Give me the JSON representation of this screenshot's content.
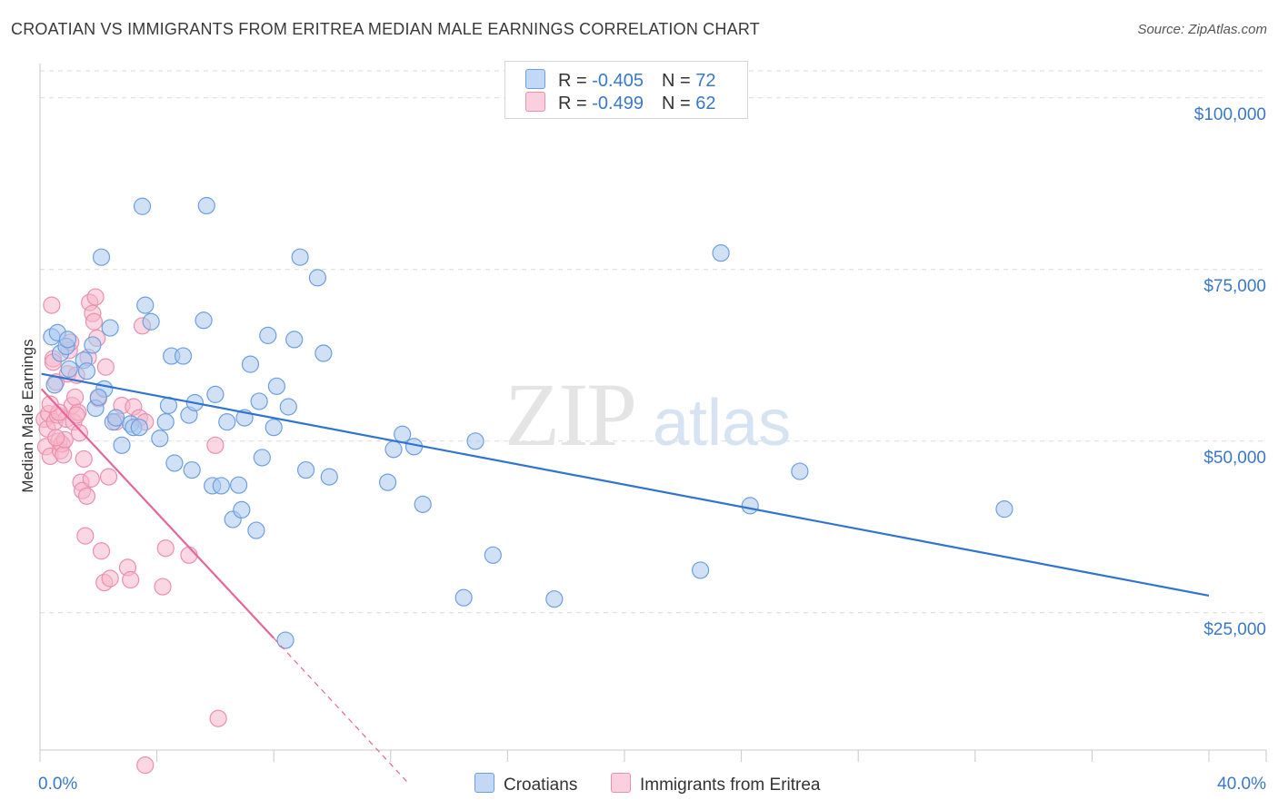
{
  "title": "CROATIAN VS IMMIGRANTS FROM ERITREA MEDIAN MALE EARNINGS CORRELATION CHART",
  "source": "Source: ZipAtlas.com",
  "watermark": {
    "zip": "ZIP",
    "atlas": "atlas"
  },
  "legend": {
    "rows": [
      {
        "r_label": "R = ",
        "r_value": "-0.405",
        "n_label": "N = ",
        "n_value": "72"
      },
      {
        "r_label": "R = ",
        "r_value": "-0.499",
        "n_label": "N = ",
        "n_value": "62"
      }
    ]
  },
  "colors": {
    "blue_fill": "#a9c8ef",
    "blue_stroke": "#6d9fe0",
    "blue_line": "#2f74d0",
    "pink_fill": "#f6b6cb",
    "pink_stroke": "#ec8fae",
    "pink_line": "#e4669a",
    "tick_text": "#3a78c9",
    "grid": "#d9d9d9"
  },
  "chart_data": {
    "type": "scatter",
    "title": "CROATIAN VS IMMIGRANTS FROM ERITREA MEDIAN MALE EARNINGS CORRELATION CHART",
    "xlabel": "",
    "ylabel": "Median Male Earnings",
    "xlim": [
      0,
      40
    ],
    "ylim": [
      5000,
      105000
    ],
    "x_tick_labels": [
      "0.0%",
      "40.0%"
    ],
    "y_ticks": [
      25000,
      50000,
      75000,
      100000
    ],
    "y_tick_labels": [
      "$25,000",
      "$50,000",
      "$75,000",
      "$100,000"
    ],
    "grid": true,
    "legend_position": "top-center",
    "series": [
      {
        "name": "Croatians",
        "r": -0.405,
        "n": 72,
        "trend": {
          "x": [
            0.05,
            40.0
          ],
          "y": [
            59800,
            27500
          ]
        },
        "points": [
          [
            0.4,
            65200
          ],
          [
            0.6,
            65800
          ],
          [
            0.7,
            62800
          ],
          [
            0.9,
            63800
          ],
          [
            0.95,
            64800
          ],
          [
            1.5,
            61800
          ],
          [
            1.6,
            60200
          ],
          [
            1.8,
            64000
          ],
          [
            1.9,
            54800
          ],
          [
            2.2,
            57600
          ],
          [
            2.4,
            66500
          ],
          [
            2.5,
            52800
          ],
          [
            2.6,
            53400
          ],
          [
            2.8,
            49400
          ],
          [
            3.1,
            52500
          ],
          [
            3.2,
            52000
          ],
          [
            2.1,
            76800
          ],
          [
            3.5,
            84200
          ],
          [
            3.6,
            69800
          ],
          [
            3.8,
            67400
          ],
          [
            4.1,
            50400
          ],
          [
            4.3,
            52800
          ],
          [
            4.4,
            55200
          ],
          [
            4.5,
            62400
          ],
          [
            4.6,
            46800
          ],
          [
            4.9,
            62400
          ],
          [
            5.1,
            53800
          ],
          [
            5.2,
            45800
          ],
          [
            5.3,
            55600
          ],
          [
            5.6,
            67600
          ],
          [
            5.7,
            84300
          ],
          [
            5.9,
            43500
          ],
          [
            6.0,
            56800
          ],
          [
            6.2,
            43500
          ],
          [
            6.4,
            52800
          ],
          [
            6.6,
            38600
          ],
          [
            6.8,
            43600
          ],
          [
            6.9,
            40000
          ],
          [
            7.0,
            53400
          ],
          [
            7.2,
            61200
          ],
          [
            7.4,
            37000
          ],
          [
            7.5,
            55800
          ],
          [
            7.6,
            47600
          ],
          [
            7.8,
            65400
          ],
          [
            8.0,
            52000
          ],
          [
            8.1,
            58000
          ],
          [
            8.5,
            55000
          ],
          [
            8.7,
            64800
          ],
          [
            8.9,
            76800
          ],
          [
            9.1,
            45800
          ],
          [
            9.5,
            73800
          ],
          [
            9.7,
            62800
          ],
          [
            9.9,
            44800
          ],
          [
            8.4,
            21000
          ],
          [
            11.9,
            44000
          ],
          [
            12.1,
            48800
          ],
          [
            12.4,
            51000
          ],
          [
            12.8,
            49200
          ],
          [
            13.1,
            40800
          ],
          [
            14.5,
            27200
          ],
          [
            14.9,
            50000
          ],
          [
            15.5,
            33400
          ],
          [
            17.6,
            27000
          ],
          [
            22.6,
            31200
          ],
          [
            23.3,
            77400
          ],
          [
            24.3,
            40600
          ],
          [
            26.0,
            45600
          ],
          [
            33.0,
            40100
          ],
          [
            1.0,
            60500
          ],
          [
            0.5,
            58200
          ],
          [
            2.0,
            56400
          ],
          [
            3.4,
            52000
          ]
        ]
      },
      {
        "name": "Immigrants from Eritrea",
        "r": -0.499,
        "n": 62,
        "trend": {
          "x": [
            0.05,
            8.0
          ],
          "y": [
            57600,
            21300
          ]
        },
        "trend_dashed": {
          "x": [
            8.0,
            12.6
          ],
          "y": [
            21300,
            200
          ]
        },
        "points": [
          [
            0.15,
            53200
          ],
          [
            0.2,
            49200
          ],
          [
            0.25,
            51800
          ],
          [
            0.3,
            54000
          ],
          [
            0.35,
            47800
          ],
          [
            0.4,
            69800
          ],
          [
            0.45,
            62000
          ],
          [
            0.5,
            52800
          ],
          [
            0.55,
            58600
          ],
          [
            0.6,
            53800
          ],
          [
            0.65,
            50000
          ],
          [
            0.7,
            48600
          ],
          [
            0.75,
            49600
          ],
          [
            0.8,
            48000
          ],
          [
            0.85,
            50200
          ],
          [
            0.9,
            53200
          ],
          [
            0.95,
            59800
          ],
          [
            1.0,
            63200
          ],
          [
            1.05,
            64400
          ],
          [
            1.1,
            55200
          ],
          [
            1.15,
            52800
          ],
          [
            1.2,
            56400
          ],
          [
            1.25,
            59600
          ],
          [
            1.3,
            54200
          ],
          [
            1.35,
            51200
          ],
          [
            1.4,
            44000
          ],
          [
            1.45,
            42800
          ],
          [
            1.5,
            47400
          ],
          [
            1.55,
            36200
          ],
          [
            1.6,
            42000
          ],
          [
            1.65,
            62200
          ],
          [
            1.7,
            70200
          ],
          [
            1.8,
            68600
          ],
          [
            1.85,
            67400
          ],
          [
            1.9,
            71000
          ],
          [
            1.95,
            65000
          ],
          [
            2.0,
            56200
          ],
          [
            2.1,
            34000
          ],
          [
            2.2,
            29400
          ],
          [
            2.25,
            60800
          ],
          [
            2.35,
            44800
          ],
          [
            2.4,
            30000
          ],
          [
            2.6,
            52800
          ],
          [
            2.8,
            55200
          ],
          [
            3.0,
            31600
          ],
          [
            3.1,
            29800
          ],
          [
            3.2,
            55000
          ],
          [
            3.4,
            53400
          ],
          [
            3.5,
            66800
          ],
          [
            3.6,
            52800
          ],
          [
            4.2,
            28800
          ],
          [
            4.3,
            34400
          ],
          [
            5.1,
            33400
          ],
          [
            6.0,
            49400
          ],
          [
            6.1,
            9600
          ],
          [
            3.6,
            2800
          ],
          [
            0.65,
            54200
          ],
          [
            0.55,
            50500
          ],
          [
            1.75,
            44500
          ],
          [
            0.45,
            61500
          ],
          [
            0.35,
            55400
          ],
          [
            1.25,
            53800
          ]
        ]
      }
    ]
  },
  "bottom_legend": {
    "series1": "Croatians",
    "series2": "Immigrants from Eritrea"
  }
}
